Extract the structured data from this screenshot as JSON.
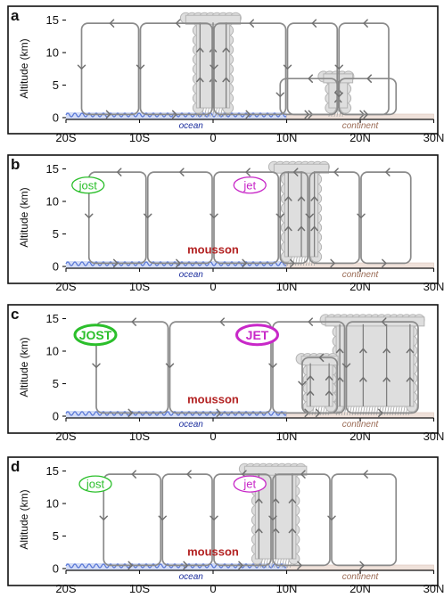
{
  "axes": {
    "ylabel": "Altitude (km)",
    "y_ticks": [
      "15",
      "10",
      "5",
      "0"
    ],
    "x_ticks": [
      "20S",
      "10S",
      "0",
      "10N",
      "20N",
      "30N"
    ]
  },
  "surface": {
    "ocean": "ocean",
    "continent": "continent"
  },
  "colors": {
    "jost": "#2bbf2b",
    "jet": "#c828c8",
    "mousson": "#b32222",
    "ocean": "#1d2f9e",
    "continent": "#9a6b55",
    "cell": "#8a8a8a"
  },
  "panels": [
    {
      "label": "a",
      "badges": [],
      "mousson_label": "",
      "cells": [
        {
          "lat": [
            -18,
            -10
          ],
          "alt": [
            0.5,
            14.5
          ]
        },
        {
          "lat": [
            -10,
            0
          ],
          "alt": [
            0.5,
            14.5
          ]
        },
        {
          "lat": [
            0,
            10
          ],
          "alt": [
            0.5,
            14.5
          ]
        },
        {
          "lat": [
            10,
            17
          ],
          "alt": [
            0.5,
            14.5
          ]
        },
        {
          "lat": [
            17,
            24
          ],
          "alt": [
            0.5,
            14.5
          ]
        },
        {
          "lat": [
            9,
            17
          ],
          "alt": [
            0.5,
            6
          ]
        },
        {
          "lat": [
            17,
            25
          ],
          "alt": [
            0.5,
            6
          ]
        }
      ],
      "convection": [
        {
          "lat": 0,
          "width": 5,
          "top": 16,
          "updrafts": 3
        },
        {
          "lat": 17,
          "width": 3,
          "top": 7,
          "updrafts": 1
        }
      ]
    },
    {
      "label": "b",
      "badges": [
        {
          "text": "jost",
          "lat": -17,
          "alt": 12.5,
          "color": "jost",
          "bold": false
        },
        {
          "text": "jet",
          "lat": 5,
          "alt": 12.5,
          "color": "jet",
          "bold": false
        }
      ],
      "mousson_label": "mousson",
      "cells": [
        {
          "lat": [
            -17,
            -9
          ],
          "alt": [
            0.5,
            14.5
          ]
        },
        {
          "lat": [
            -9,
            0
          ],
          "alt": [
            0.5,
            14.5
          ]
        },
        {
          "lat": [
            0,
            9
          ],
          "alt": [
            0.5,
            14.5
          ]
        },
        {
          "lat": [
            9,
            13
          ],
          "alt": [
            0.5,
            14.5
          ]
        },
        {
          "lat": [
            13,
            20
          ],
          "alt": [
            0.5,
            14.5
          ]
        },
        {
          "lat": [
            20,
            27
          ],
          "alt": [
            0.5,
            14.5
          ]
        }
      ],
      "convection": [
        {
          "lat": 12,
          "width": 5,
          "top": 16,
          "updrafts": 3
        }
      ]
    },
    {
      "label": "c",
      "badges": [
        {
          "text": "JOST",
          "lat": -16,
          "alt": 12.5,
          "color": "jost",
          "bold": true
        },
        {
          "text": "JET",
          "lat": 6,
          "alt": 12.5,
          "color": "jet",
          "bold": true
        }
      ],
      "mousson_label": "mousson",
      "cells": [
        {
          "lat": [
            -16,
            -6
          ],
          "alt": [
            0.5,
            14.5
          ]
        },
        {
          "lat": [
            -6,
            8
          ],
          "alt": [
            0.5,
            14.5
          ]
        },
        {
          "lat": [
            8,
            18
          ],
          "alt": [
            0.5,
            14.5
          ]
        },
        {
          "lat": [
            18,
            28
          ],
          "alt": [
            0.5,
            14.5
          ]
        },
        {
          "lat": [
            12,
            17
          ],
          "alt": [
            0.5,
            9
          ]
        }
      ],
      "convection": [
        {
          "lat": 22,
          "width": 11,
          "top": 15.5,
          "updrafts": 4
        },
        {
          "lat": 14.5,
          "width": 4,
          "top": 9.5,
          "updrafts": 2
        }
      ]
    },
    {
      "label": "d",
      "badges": [
        {
          "text": "jost",
          "lat": -16,
          "alt": 13,
          "color": "jost",
          "bold": false
        },
        {
          "text": "jet",
          "lat": 5,
          "alt": 13,
          "color": "jet",
          "bold": false
        }
      ],
      "mousson_label": "mousson",
      "cells": [
        {
          "lat": [
            -15,
            -7
          ],
          "alt": [
            0.5,
            14.5
          ]
        },
        {
          "lat": [
            -7,
            0
          ],
          "alt": [
            0.5,
            14.5
          ]
        },
        {
          "lat": [
            0,
            8
          ],
          "alt": [
            0.5,
            14.5
          ]
        },
        {
          "lat": [
            8,
            16
          ],
          "alt": [
            0.5,
            14.5
          ]
        },
        {
          "lat": [
            16,
            25
          ],
          "alt": [
            0.5,
            14.5
          ]
        }
      ],
      "convection": [
        {
          "lat": 8.5,
          "width": 6,
          "top": 16,
          "updrafts": 3
        }
      ]
    }
  ]
}
